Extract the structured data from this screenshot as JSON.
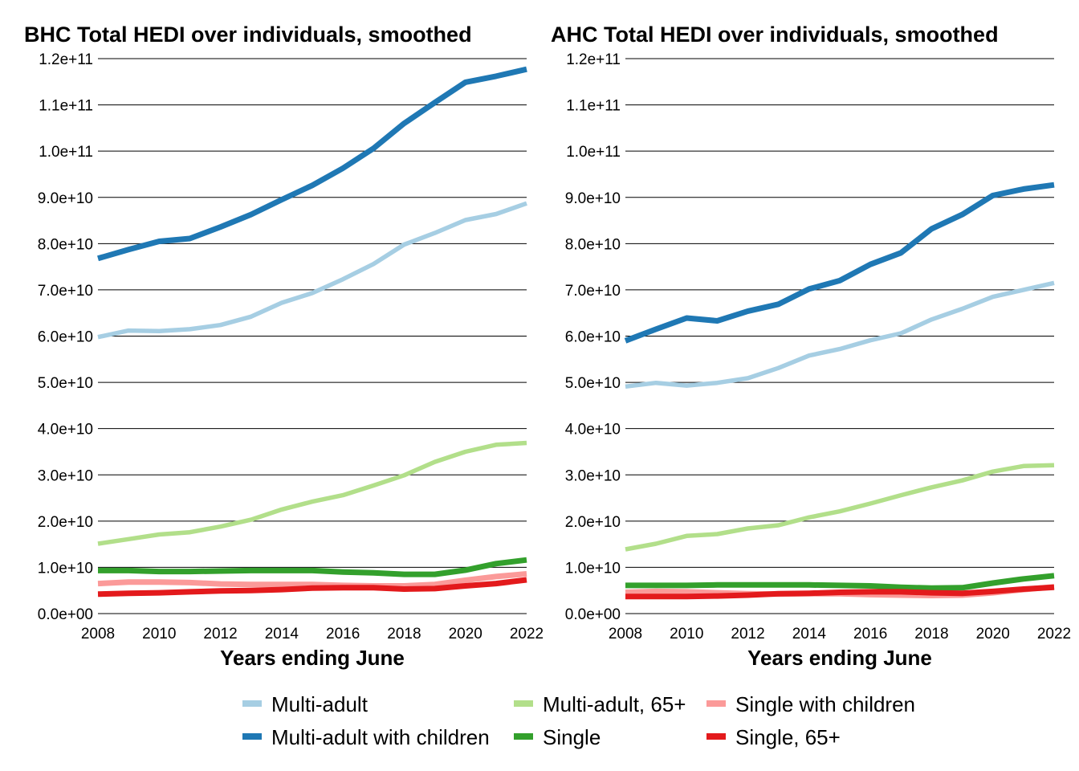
{
  "chart_data": [
    {
      "type": "line",
      "title": "BHC Total HEDI over individuals, smoothed",
      "xlabel": "Years ending June",
      "ylabel": "",
      "xlim": [
        2008,
        2022
      ],
      "ylim": [
        0,
        120000000000
      ],
      "x_ticks": [
        "2008",
        "2010",
        "2012",
        "2014",
        "2016",
        "2018",
        "2020",
        "2022"
      ],
      "y_ticks": [
        "0.0e+00",
        "1.0e+10",
        "2.0e+10",
        "3.0e+10",
        "4.0e+10",
        "5.0e+10",
        "6.0e+10",
        "7.0e+10",
        "8.0e+10",
        "9.0e+10",
        "1.0e+11",
        "1.1e+11",
        "1.2e+11"
      ],
      "grid": "horizontal",
      "x": [
        2008,
        2009,
        2010,
        2011,
        2012,
        2013,
        2014,
        2015,
        2016,
        2017,
        2018,
        2019,
        2020,
        2021,
        2022
      ],
      "series": [
        {
          "name": "Multi-adult",
          "color": "#A6CEE3",
          "values": [
            59800000000.0,
            61200000000.0,
            61100000000.0,
            61500000000.0,
            62400000000.0,
            64200000000.0,
            67200000000.0,
            69300000000.0,
            72300000000.0,
            75600000000.0,
            79800000000.0,
            82300000000.0,
            85100000000.0,
            86400000000.0,
            88700000000.0
          ]
        },
        {
          "name": "Multi-adult with children",
          "color": "#1F78B4",
          "values": [
            76800000000.0,
            78700000000.0,
            80500000000.0,
            81100000000.0,
            83600000000.0,
            86300000000.0,
            89500000000.0,
            92600000000.0,
            96300000000.0,
            100600000000.0,
            106000000000.0,
            110500000000.0,
            114900000000.0,
            116200000000.0,
            117700000000.0
          ]
        },
        {
          "name": "Multi-adult, 65+",
          "color": "#B2DF8A",
          "values": [
            15100000000.0,
            16100000000.0,
            17100000000.0,
            17600000000.0,
            18800000000.0,
            20300000000.0,
            22500000000.0,
            24200000000.0,
            25600000000.0,
            27700000000.0,
            29900000000.0,
            32800000000.0,
            35000000000.0,
            36500000000.0,
            36900000000.0
          ]
        },
        {
          "name": "Single",
          "color": "#33A02C",
          "values": [
            9300000000.0,
            9300000000.0,
            9100000000.0,
            9100000000.0,
            9200000000.0,
            9300000000.0,
            9300000000.0,
            9300000000.0,
            9000000000.0,
            8800000000.0,
            8500000000.0,
            8500000000.0,
            9400000000.0,
            10800000000.0,
            11600000000.0
          ]
        },
        {
          "name": "Single with children",
          "color": "#FB9A99",
          "values": [
            6500000000.0,
            6800000000.0,
            6800000000.0,
            6700000000.0,
            6400000000.0,
            6300000000.0,
            6300000000.0,
            6300000000.0,
            6100000000.0,
            6000000000.0,
            6000000000.0,
            6300000000.0,
            7200000000.0,
            8000000000.0,
            8600000000.0
          ]
        },
        {
          "name": "Single, 65+",
          "color": "#E31A1C",
          "values": [
            4200000000.0,
            4400000000.0,
            4500000000.0,
            4700000000.0,
            4900000000.0,
            5000000000.0,
            5200000000.0,
            5500000000.0,
            5600000000.0,
            5600000000.0,
            5300000000.0,
            5400000000.0,
            6000000000.0,
            6500000000.0,
            7300000000.0
          ]
        }
      ]
    },
    {
      "type": "line",
      "title": "AHC Total HEDI over individuals, smoothed",
      "xlabel": "Years ending June",
      "ylabel": "",
      "xlim": [
        2008,
        2022
      ],
      "ylim": [
        0,
        120000000000
      ],
      "x_ticks": [
        "2008",
        "2010",
        "2012",
        "2014",
        "2016",
        "2018",
        "2020",
        "2022"
      ],
      "y_ticks": [
        "0.0e+00",
        "1.0e+10",
        "2.0e+10",
        "3.0e+10",
        "4.0e+10",
        "5.0e+10",
        "6.0e+10",
        "7.0e+10",
        "8.0e+10",
        "9.0e+10",
        "1.0e+11",
        "1.1e+11",
        "1.2e+11"
      ],
      "grid": "horizontal",
      "x": [
        2008,
        2009,
        2010,
        2011,
        2012,
        2013,
        2014,
        2015,
        2016,
        2017,
        2018,
        2019,
        2020,
        2021,
        2022
      ],
      "series": [
        {
          "name": "Multi-adult",
          "color": "#A6CEE3",
          "values": [
            49100000000.0,
            49900000000.0,
            49300000000.0,
            49900000000.0,
            50900000000.0,
            53100000000.0,
            55800000000.0,
            57200000000.0,
            59100000000.0,
            60600000000.0,
            63600000000.0,
            65900000000.0,
            68500000000.0,
            70000000000.0,
            71500000000.0
          ]
        },
        {
          "name": "Multi-adult with children",
          "color": "#1F78B4",
          "values": [
            59000000000.0,
            61500000000.0,
            63900000000.0,
            63300000000.0,
            65400000000.0,
            66900000000.0,
            70200000000.0,
            72000000000.0,
            75500000000.0,
            78000000000.0,
            83200000000.0,
            86300000000.0,
            90400000000.0,
            91800000000.0,
            92700000000.0
          ]
        },
        {
          "name": "Multi-adult, 65+",
          "color": "#B2DF8A",
          "values": [
            13900000000.0,
            15100000000.0,
            16800000000.0,
            17200000000.0,
            18400000000.0,
            19100000000.0,
            20800000000.0,
            22100000000.0,
            23800000000.0,
            25600000000.0,
            27300000000.0,
            28800000000.0,
            30700000000.0,
            31900000000.0,
            32100000000.0
          ]
        },
        {
          "name": "Single",
          "color": "#33A02C",
          "values": [
            6100000000.0,
            6100000000.0,
            6100000000.0,
            6200000000.0,
            6200000000.0,
            6200000000.0,
            6200000000.0,
            6100000000.0,
            6000000000.0,
            5700000000.0,
            5500000000.0,
            5600000000.0,
            6600000000.0,
            7500000000.0,
            8200000000.0
          ]
        },
        {
          "name": "Single with children",
          "color": "#FB9A99",
          "values": [
            4600000000.0,
            4800000000.0,
            4700000000.0,
            4500000000.0,
            4300000000.0,
            4200000000.0,
            4300000000.0,
            4300000000.0,
            4100000000.0,
            4000000000.0,
            3900000000.0,
            4000000000.0,
            4500000000.0,
            5200000000.0,
            5800000000.0
          ]
        },
        {
          "name": "Single, 65+",
          "color": "#E31A1C",
          "values": [
            3700000000.0,
            3700000000.0,
            3700000000.0,
            3800000000.0,
            4000000000.0,
            4300000000.0,
            4400000000.0,
            4600000000.0,
            4700000000.0,
            4700000000.0,
            4500000000.0,
            4400000000.0,
            4800000000.0,
            5300000000.0,
            5700000000.0
          ]
        }
      ]
    }
  ],
  "legend": {
    "placement": "bottom",
    "items": [
      {
        "name": "Multi-adult",
        "color": "#A6CEE3"
      },
      {
        "name": "Multi-adult, 65+",
        "color": "#B2DF8A"
      },
      {
        "name": "Single with children",
        "color": "#FB9A99"
      },
      {
        "name": "Multi-adult with children",
        "color": "#1F78B4"
      },
      {
        "name": "Single",
        "color": "#33A02C"
      },
      {
        "name": "Single, 65+",
        "color": "#E31A1C"
      }
    ]
  }
}
